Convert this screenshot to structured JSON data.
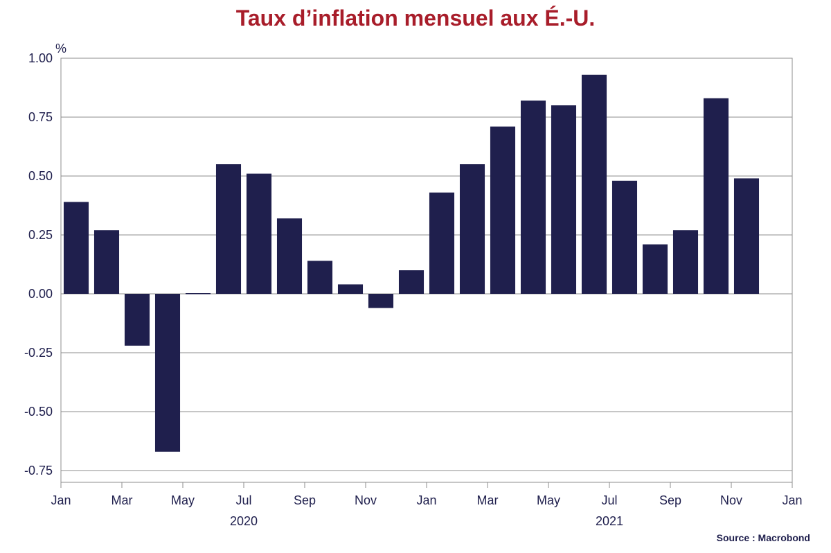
{
  "chart_data": {
    "type": "bar",
    "title": "Taux d’inflation mensuel aux É.-U.",
    "unit_label": "%",
    "source": "Source : Macrobond",
    "colors": {
      "bar": "#1f1f4d",
      "title": "#a81d2a",
      "grid": "#8c8c8c",
      "text": "#1f1f4d"
    },
    "grid": true,
    "ylim": [
      -0.8,
      1.0
    ],
    "yticks": [
      1.0,
      0.75,
      0.5,
      0.25,
      0.0,
      -0.25,
      -0.5,
      -0.75
    ],
    "ytick_labels": [
      "1.00",
      "0.75",
      "0.50",
      "0.25",
      "0.00",
      "-0.25",
      "-0.50",
      "-0.75"
    ],
    "x_tick_labels": [
      "Jan",
      "Mar",
      "May",
      "Jul",
      "Sep",
      "Nov",
      "Jan",
      "Mar",
      "May",
      "Jul",
      "Sep",
      "Nov",
      "Jan"
    ],
    "year_labels": [
      "2020",
      "2021"
    ],
    "categories": [
      "Jan 2020",
      "Feb 2020",
      "Mar 2020",
      "Apr 2020",
      "May 2020",
      "Jun 2020",
      "Jul 2020",
      "Aug 2020",
      "Sep 2020",
      "Oct 2020",
      "Nov 2020",
      "Dec 2020",
      "Jan 2021",
      "Feb 2021",
      "Mar 2021",
      "Apr 2021",
      "May 2021",
      "Jun 2021",
      "Jul 2021",
      "Aug 2021",
      "Sep 2021",
      "Oct 2021",
      "Nov 2021"
    ],
    "values": [
      0.39,
      0.27,
      -0.22,
      -0.67,
      0.0,
      0.55,
      0.51,
      0.32,
      0.14,
      0.04,
      -0.06,
      0.1,
      0.43,
      0.55,
      0.71,
      0.82,
      0.8,
      0.93,
      0.48,
      0.21,
      0.27,
      0.83,
      0.49
    ]
  }
}
